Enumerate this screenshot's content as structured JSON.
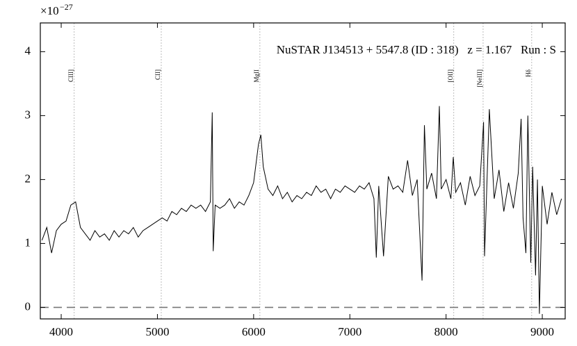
{
  "chart_data": {
    "type": "line",
    "title": "NuSTAR J134513 + 5547.8 (ID : 318)   z = 1.167   Run : S",
    "y_offset_base": "×10",
    "y_offset_exp": "−27",
    "xlim": [
      3783,
      9238
    ],
    "ylim": [
      -0.18,
      4.45
    ],
    "xticks": [
      4000,
      5000,
      6000,
      7000,
      8000,
      9000
    ],
    "yticks": [
      0,
      1,
      2,
      3,
      4
    ],
    "reference_y": 0,
    "lines": [
      {
        "label": "CIII]",
        "x": 4135
      },
      {
        "label": "CII]",
        "x": 5040
      },
      {
        "label": "MgII",
        "x": 6065
      },
      {
        "label": "[OII]",
        "x": 8080
      },
      {
        "label": "[NeIII]",
        "x": 8385
      },
      {
        "label": "Hδ",
        "x": 8890
      }
    ],
    "series": [
      {
        "color": "#000000",
        "x": [
          3800,
          3850,
          3900,
          3950,
          4000,
          4050,
          4100,
          4150,
          4200,
          4250,
          4300,
          4350,
          4400,
          4450,
          4500,
          4550,
          4600,
          4650,
          4700,
          4750,
          4800,
          4850,
          4900,
          4950,
          5000,
          5050,
          5100,
          5150,
          5200,
          5250,
          5300,
          5350,
          5400,
          5450,
          5500,
          5550,
          5570,
          5580,
          5600,
          5650,
          5700,
          5750,
          5800,
          5850,
          5900,
          5950,
          6000,
          6050,
          6075,
          6100,
          6150,
          6200,
          6250,
          6300,
          6350,
          6400,
          6450,
          6500,
          6550,
          6600,
          6650,
          6700,
          6750,
          6800,
          6850,
          6900,
          6950,
          7000,
          7050,
          7100,
          7150,
          7200,
          7250,
          7275,
          7300,
          7350,
          7400,
          7450,
          7500,
          7550,
          7600,
          7650,
          7700,
          7750,
          7775,
          7800,
          7850,
          7900,
          7930,
          7950,
          8000,
          8050,
          8075,
          8100,
          8150,
          8200,
          8250,
          8300,
          8350,
          8390,
          8400,
          8450,
          8500,
          8550,
          8600,
          8650,
          8700,
          8750,
          8780,
          8800,
          8830,
          8850,
          8880,
          8900,
          8930,
          8950,
          8970,
          9000,
          9050,
          9100,
          9150,
          9200
        ],
        "values": [
          1.05,
          1.25,
          0.85,
          1.2,
          1.3,
          1.35,
          1.6,
          1.65,
          1.25,
          1.15,
          1.05,
          1.2,
          1.1,
          1.15,
          1.05,
          1.2,
          1.1,
          1.2,
          1.15,
          1.25,
          1.1,
          1.2,
          1.25,
          1.3,
          1.35,
          1.4,
          1.35,
          1.5,
          1.45,
          1.55,
          1.5,
          1.6,
          1.55,
          1.6,
          1.5,
          1.65,
          3.05,
          0.88,
          1.6,
          1.55,
          1.6,
          1.7,
          1.55,
          1.65,
          1.6,
          1.75,
          1.95,
          2.55,
          2.7,
          2.2,
          1.85,
          1.75,
          1.9,
          1.7,
          1.8,
          1.65,
          1.75,
          1.7,
          1.8,
          1.75,
          1.9,
          1.8,
          1.85,
          1.7,
          1.85,
          1.8,
          1.9,
          1.85,
          1.8,
          1.9,
          1.85,
          1.95,
          1.7,
          0.78,
          1.9,
          0.8,
          2.05,
          1.85,
          1.9,
          1.8,
          2.3,
          1.75,
          2.0,
          0.42,
          2.85,
          1.85,
          2.1,
          1.7,
          3.15,
          1.85,
          2.0,
          1.7,
          2.35,
          1.8,
          1.95,
          1.6,
          2.05,
          1.75,
          1.9,
          2.9,
          0.8,
          3.1,
          1.7,
          2.15,
          1.5,
          1.95,
          1.55,
          2.1,
          2.95,
          1.4,
          0.85,
          3.0,
          0.7,
          2.2,
          0.5,
          2.0,
          -0.1,
          1.9,
          1.3,
          1.8,
          1.45,
          1.7
        ]
      }
    ]
  }
}
